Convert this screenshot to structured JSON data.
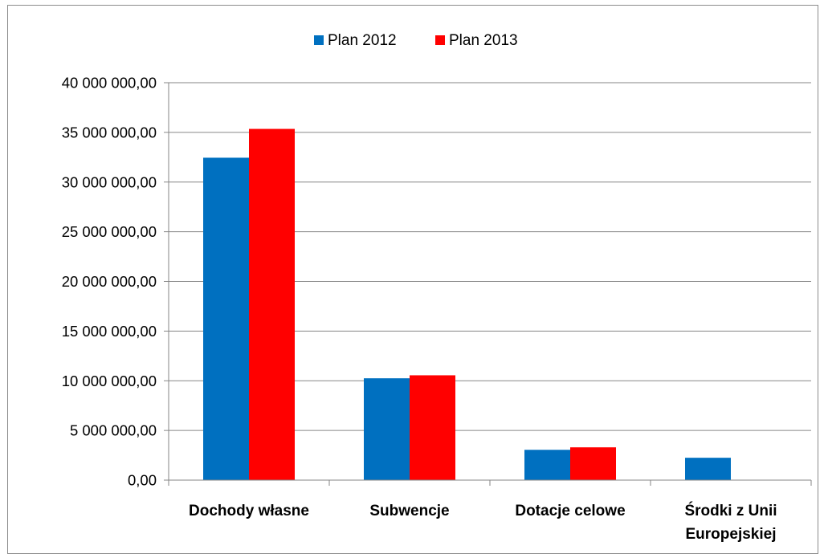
{
  "chart_data": {
    "type": "bar",
    "categories": [
      [
        "Dochody własne"
      ],
      [
        "Subwencje"
      ],
      [
        "Dotacje celowe"
      ],
      [
        "Środki z Unii",
        "Europejskiej"
      ]
    ],
    "series": [
      {
        "name": "Plan 2012",
        "color": "#0070C0",
        "values": [
          32450000,
          10250000,
          3050000,
          2250000
        ]
      },
      {
        "name": "Plan 2013",
        "color": "#FF0000",
        "values": [
          35350000,
          10550000,
          3300000,
          0
        ]
      }
    ],
    "ylim": [
      0,
      40000000
    ],
    "yticks": [
      0,
      5000000,
      10000000,
      15000000,
      20000000,
      25000000,
      30000000,
      35000000,
      40000000
    ],
    "ytick_labels": [
      "0,00",
      "5 000 000,00",
      "10 000 000,00",
      "15 000 000,00",
      "20 000 000,00",
      "25 000 000,00",
      "30 000 000,00",
      "35 000 000,00",
      "40 000 000,00"
    ],
    "grid": true,
    "legend_position": "top-center",
    "title": "",
    "xlabel": "",
    "ylabel": ""
  }
}
